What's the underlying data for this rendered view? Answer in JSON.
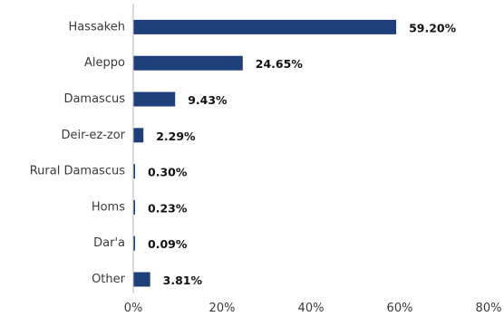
{
  "chart_data": {
    "type": "bar",
    "orientation": "horizontal",
    "categories": [
      "Hassakeh",
      "Aleppo",
      "Damascus",
      "Deir-ez-zor",
      "Rural Damascus",
      "Homs",
      "Dar'a",
      "Other"
    ],
    "values": [
      59.2,
      24.65,
      9.43,
      2.29,
      0.3,
      0.23,
      0.09,
      3.81
    ],
    "value_labels": [
      "59.20%",
      "24.65%",
      "9.43%",
      "2.29%",
      "0.30%",
      "0.23%",
      "0.09%",
      "3.81%"
    ],
    "title": "",
    "xlabel": "",
    "ylabel": "",
    "xlim": [
      0,
      80
    ],
    "x_ticks": [
      0,
      20,
      40,
      60,
      80
    ],
    "x_tick_labels": [
      "0%",
      "20%",
      "40%",
      "60%",
      "80%"
    ],
    "grid": false,
    "legend": "none",
    "bar_color": "#1f3f7a"
  }
}
